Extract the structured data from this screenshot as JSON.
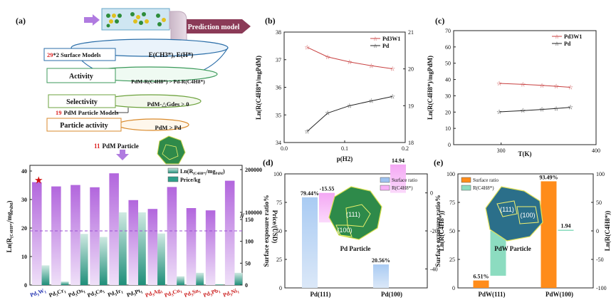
{
  "panel_a": {
    "label": "(a)",
    "prediction_model": "Prediction model",
    "surface_models_count": "29",
    "surface_models_text": "*2 Surface Models",
    "adsorbates": "E(CH3*), E(H*)",
    "activity_label": "Activity",
    "activity_rule": "PdM-R(C4H8*) > Pd-R(C4H8*)",
    "selectivity_label": "Selectivity",
    "selectivity_rule": "PdM-△Gdes > 0",
    "particle_models_count": "19",
    "particle_models_text": "PdM Particle Models",
    "particle_activity_label": "Particle activity",
    "particle_activity_rule": "PdM > Pd",
    "selected_count": "11",
    "selected_text": "PdM Particle"
  },
  "colors": {
    "purple": "#b266dd",
    "teal": "#2e9e8a",
    "red_series": "#c84040",
    "black_series": "#222222",
    "blue_bar": "#9ec3f0",
    "pink_bar": "#f7b0f7",
    "orange_bar": "#ff8c1a",
    "mint_bar": "#8cdcc0",
    "dash_line": "#9b4fd0",
    "red_label": "#cc2020",
    "blue_label": "#2030b0"
  },
  "chart_data": [
    {
      "id": "bottom_left",
      "type": "bar",
      "categories": [
        "Pd3W1",
        "Pd3Cr1",
        "Pd3Os1",
        "Pd3Co1",
        "Pd3Ir1",
        "Pd3Pt1",
        "Pd3Ag1",
        "Pd3Cu1",
        "Pd3Sn1",
        "Pd3Pb1",
        "Pd3Ni1"
      ],
      "category_labels": [
        {
          "base": "Pd",
          "s1": "3",
          "el": "W",
          "s2": "1",
          "color": "blue"
        },
        {
          "base": "Pd",
          "s1": "3",
          "el": "Cr",
          "s2": "1",
          "color": "black"
        },
        {
          "base": "Pd",
          "s1": "3",
          "el": "Os",
          "s2": "1",
          "color": "black"
        },
        {
          "base": "Pd",
          "s1": "3",
          "el": "Co",
          "s2": "1",
          "color": "black"
        },
        {
          "base": "Pd",
          "s1": "3",
          "el": "Ir",
          "s2": "1",
          "color": "black"
        },
        {
          "base": "Pd",
          "s1": "3",
          "el": "Pt",
          "s2": "1",
          "color": "black"
        },
        {
          "base": "Pd",
          "s1": "3",
          "el": "Ag",
          "s2": "1",
          "color": "red"
        },
        {
          "base": "Pd",
          "s1": "3",
          "el": "Cu",
          "s2": "1",
          "color": "red"
        },
        {
          "base": "Pd",
          "s1": "3",
          "el": "Sn",
          "s2": "1",
          "color": "red"
        },
        {
          "base": "Pd",
          "s1": "3",
          "el": "Pb",
          "s2": "1",
          "color": "red"
        },
        {
          "base": "Pd",
          "s1": "3",
          "el": "Ni",
          "s2": "1",
          "color": "red"
        }
      ],
      "series": [
        {
          "name": "Ln(R(C4H8*)/mgPdM)",
          "values": [
            36.1,
            34.6,
            35.1,
            34.3,
            39.2,
            29.8,
            26.7,
            34.4,
            27.0,
            26.2,
            36.6
          ],
          "axis": "left"
        },
        {
          "name": "Price/kg",
          "values": [
            45,
            8,
            117,
            110,
            100000,
            38000,
            118,
            20,
            28,
            2,
            28
          ],
          "axis": "right"
        }
      ],
      "ylabel": "Ln(R(C4H8*)/mgPdM)",
      "ylabel_parts": {
        "main": "Ln(R",
        "sub1": "(C4H8*)",
        "mid": "/mg",
        "sub2": "PdM",
        "end": ")"
      },
      "y2label": "Price/(USD)",
      "yticks": [
        "0",
        "10",
        "20",
        "30",
        "40"
      ],
      "y2ticks_low": [
        "0",
        "50",
        "100",
        "150"
      ],
      "y2ticks_high": [
        "100000",
        "200000"
      ],
      "legend": [
        "Ln(R(C4H8*)/mgPdM)",
        "Price/kg"
      ],
      "legend_parts": {
        "main": "Ln(R",
        "sub1": "(C4H8*)",
        "mid": "/mg",
        "sub2": "PdM",
        "end": ")"
      },
      "legend_price": "Price/kg",
      "dashed_line_value": 19,
      "star_on": "Pd3W1"
    },
    {
      "id": "b",
      "label": "(b)",
      "type": "line",
      "x": [
        0.038,
        0.072,
        0.108,
        0.144,
        0.179
      ],
      "series": [
        {
          "name": "Pd3W1",
          "values": [
            37.45,
            37.1,
            36.92,
            36.78,
            36.67
          ],
          "axis": "left",
          "marker": "star"
        },
        {
          "name": "Pd",
          "values": [
            18.3,
            18.8,
            19.0,
            19.13,
            19.25
          ],
          "axis": "right",
          "marker": "star-open"
        }
      ],
      "xlabel": "p(H2)",
      "ylabel": "Ln(R(C4H8*)/mgPdM)",
      "xticks": [
        "0.0",
        "0.1",
        "0.2"
      ],
      "yticks": [
        "34",
        "35",
        "36",
        "37",
        "38"
      ],
      "y2ticks": [
        "18",
        "19",
        "20",
        "21"
      ],
      "xlim": [
        0,
        0.2
      ],
      "ylim": [
        34,
        38
      ],
      "y2lim": [
        18,
        21
      ]
    },
    {
      "id": "c",
      "label": "(c)",
      "type": "line",
      "x": [
        298,
        323,
        343,
        358,
        373
      ],
      "series": [
        {
          "name": "Pd3W1",
          "values": [
            37.6,
            37.0,
            36.4,
            35.8,
            35.2
          ],
          "marker": "star"
        },
        {
          "name": "Pd",
          "values": [
            20.1,
            20.9,
            21.6,
            22.2,
            22.9
          ],
          "marker": "star-open"
        }
      ],
      "xlabel": "T(K)",
      "ylabel": "Ln(R(C4H8*)/mgPdM)",
      "xticks": [
        "300",
        "400"
      ],
      "yticks": [
        "0",
        "10",
        "20",
        "30",
        "40",
        "50",
        "60",
        "70"
      ],
      "xlim": [
        250,
        400
      ],
      "ylim": [
        0,
        70
      ]
    },
    {
      "id": "d",
      "label": "(d)",
      "type": "bar",
      "categories": [
        "Pd(111)",
        "Pd(100)"
      ],
      "series": [
        {
          "name": "Surface ratio",
          "values": [
            79.44,
            20.56
          ],
          "axis": "left"
        },
        {
          "name": "R(C4H8*)",
          "values": [
            -15.55,
            14.94
          ],
          "axis": "right"
        }
      ],
      "value_labels": [
        "79.44%",
        "-15.55",
        "20.56%",
        "14.94"
      ],
      "ylabel": "Surface exposure ratio%",
      "y2label": "Ln(R(C4H8*))",
      "yticks": [
        "0",
        "25",
        "50",
        "75",
        "100"
      ],
      "y2ticks": [
        "0",
        "-20",
        "-40"
      ],
      "inset_caption": "Pd Particle",
      "facets": [
        "(111)",
        "(100)"
      ],
      "legend_surface": "Surface ratio",
      "legend_r": "R(C4H8*)"
    },
    {
      "id": "e",
      "label": "(e)",
      "type": "bar",
      "categories": [
        "PdW(111)",
        "PdW(100)"
      ],
      "series": [
        {
          "name": "Surface ratio",
          "values": [
            6.51,
            93.49
          ],
          "axis": "left"
        },
        {
          "name": "R(C4H8*)",
          "values": [
            -78.67,
            1.94
          ],
          "axis": "right"
        }
      ],
      "value_labels": [
        "6.51%",
        "-78.67",
        "93.49%",
        "1.94"
      ],
      "ylabel": "Surface exposure ratio%",
      "y2label": "Ln(R(C4H8*))",
      "yticks": [
        "0",
        "25",
        "50",
        "75",
        "100"
      ],
      "y2ticks": [
        "100",
        "50",
        "0",
        "-50",
        "-100"
      ],
      "inset_caption": "PdW Particle",
      "facets": [
        "(111)",
        "(100)"
      ],
      "legend_surface": "Surface ratio",
      "legend_r": "R(C4H8*)"
    }
  ]
}
